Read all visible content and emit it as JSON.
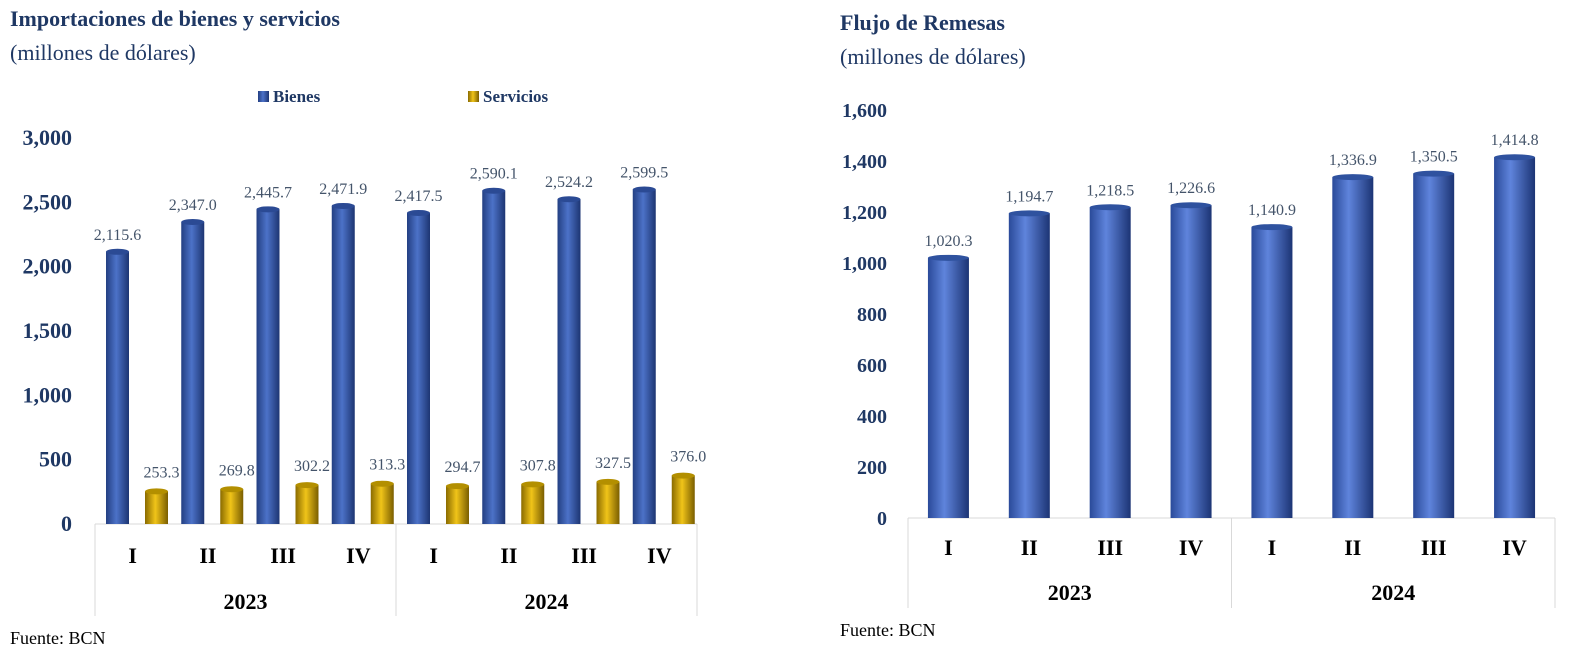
{
  "charts": {
    "left": {
      "title": "Importaciones de bienes y servicios",
      "subtitle": "(millones de dólares)",
      "source": "Fuente: BCN"
    },
    "right": {
      "title": "Flujo de Remesas",
      "subtitle": "(millones de dólares)",
      "source": "Fuente: BCN"
    }
  },
  "colors": {
    "bienes": "#3a5fb0",
    "servicios": "#d4a800",
    "remesas": "#3c62c0",
    "axis_text": "#1f3864"
  },
  "chart_data": [
    {
      "type": "bar",
      "title": "Importaciones de bienes y servicios",
      "subtitle": "(millones de dólares)",
      "categories": [
        "I",
        "II",
        "III",
        "IV",
        "I",
        "II",
        "III",
        "IV"
      ],
      "groups": [
        {
          "label": "2023",
          "span": 4
        },
        {
          "label": "2024",
          "span": 4
        }
      ],
      "series": [
        {
          "name": "Bienes",
          "values": [
            2115.6,
            2347.0,
            2445.7,
            2471.9,
            2417.5,
            2590.1,
            2524.2,
            2599.5
          ],
          "labels": [
            "2,115.6",
            "2,347.0",
            "2,445.7",
            "2,471.9",
            "2,417.5",
            "2,590.1",
            "2,524.2",
            "2,599.5"
          ]
        },
        {
          "name": "Servicios",
          "values": [
            253.3,
            269.8,
            302.2,
            313.3,
            294.7,
            307.8,
            327.5,
            376.0
          ],
          "labels": [
            "253.3",
            "269.8",
            "302.2",
            "313.3",
            "294.7",
            "307.8",
            "327.5",
            "376.0"
          ]
        }
      ],
      "ylim": [
        0,
        3000
      ],
      "yticks": [
        0,
        500,
        1000,
        1500,
        2000,
        2500,
        3000
      ],
      "ytick_labels": [
        "0",
        "500",
        "1,000",
        "1,500",
        "2,000",
        "2,500",
        "3,000"
      ],
      "legend": "top-center",
      "grid": false
    },
    {
      "type": "bar",
      "title": "Flujo de Remesas",
      "subtitle": "(millones de dólares)",
      "categories": [
        "I",
        "II",
        "III",
        "IV",
        "I",
        "II",
        "III",
        "IV"
      ],
      "groups": [
        {
          "label": "2023",
          "span": 4
        },
        {
          "label": "2024",
          "span": 4
        }
      ],
      "series": [
        {
          "values": [
            1020.3,
            1194.7,
            1218.5,
            1226.6,
            1140.9,
            1336.9,
            1350.5,
            1414.8
          ],
          "labels": [
            "1,020.3",
            "1,194.7",
            "1,218.5",
            "1,226.6",
            "1,140.9",
            "1,336.9",
            "1,350.5",
            "1,414.8"
          ]
        }
      ],
      "ylim": [
        0,
        1600
      ],
      "yticks": [
        0,
        200,
        400,
        600,
        800,
        1000,
        1200,
        1400,
        1600
      ],
      "ytick_labels": [
        "0",
        "200",
        "400",
        "600",
        "800",
        "1,000",
        "1,200",
        "1,400",
        "1,600"
      ],
      "grid": false
    }
  ]
}
